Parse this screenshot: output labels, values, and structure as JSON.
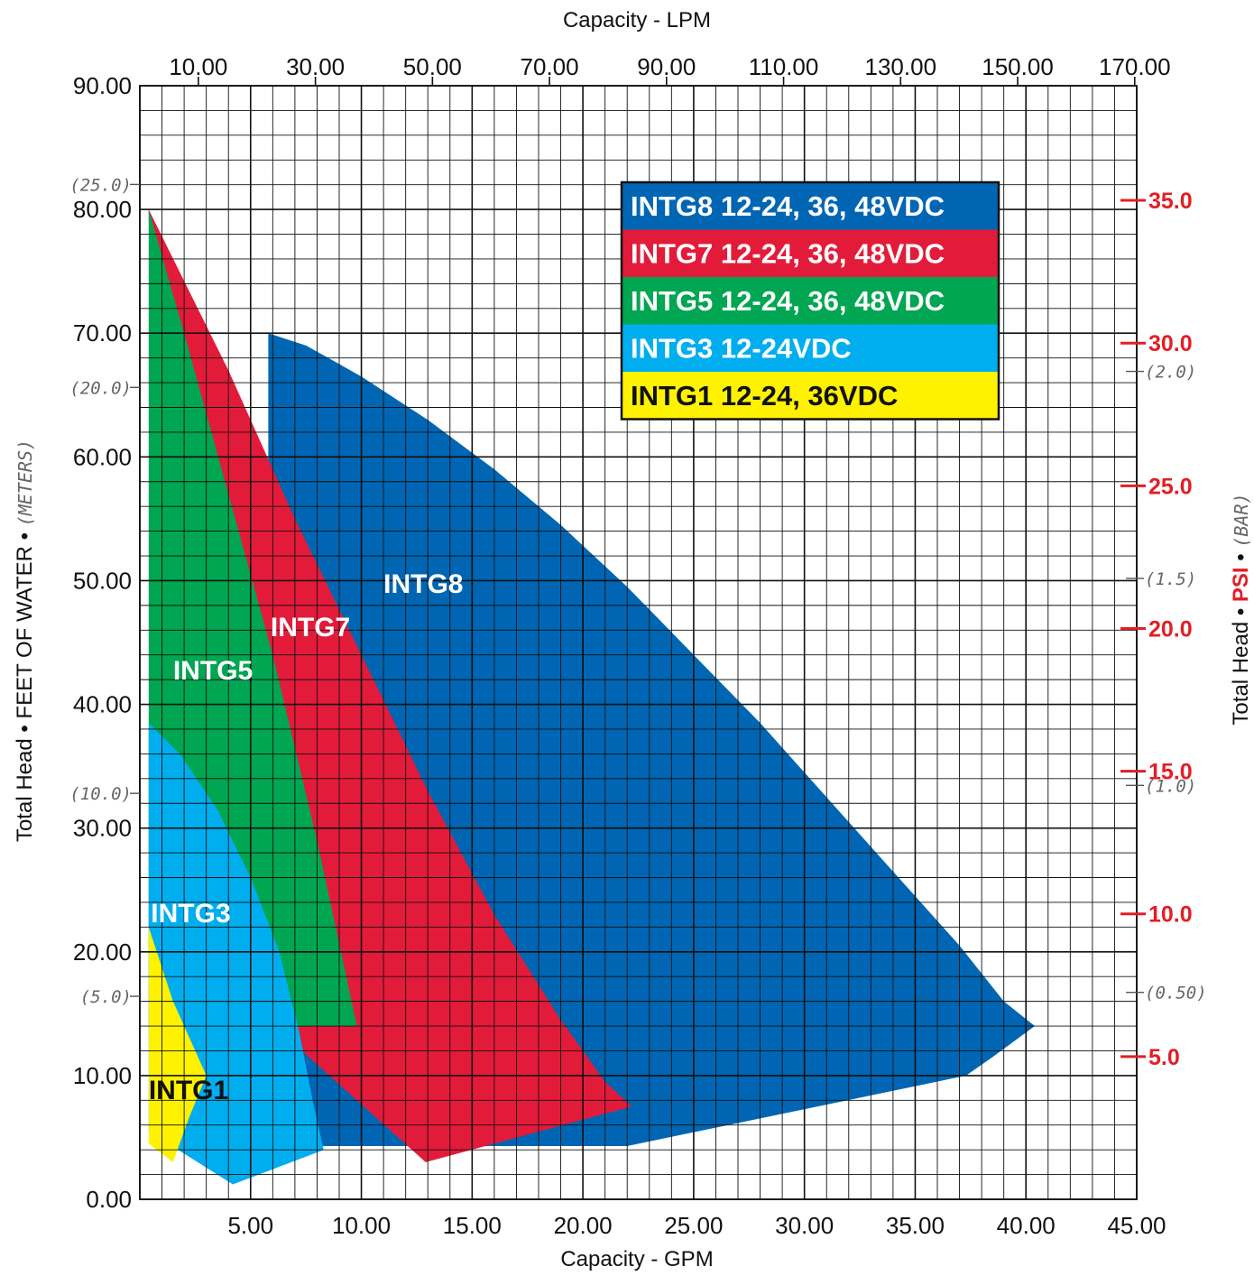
{
  "chart_data": {
    "type": "area",
    "xlabel": "Capacity - GPM",
    "x2label": "Capacity - LPM",
    "ylabel_parts": [
      "Total Head",
      "FEET OF WATER",
      "(METERS)"
    ],
    "y2label_parts": [
      "Total Head",
      "PSI",
      "(BAR)"
    ],
    "xlim": [
      0,
      45
    ],
    "ylim": [
      0,
      90
    ],
    "grid": true,
    "x_ticks": [
      "5.00",
      "10.00",
      "15.00",
      "20.00",
      "25.00",
      "30.00",
      "35.00",
      "40.00",
      "45.00"
    ],
    "lpm_ticks": [
      "10.00",
      "30.00",
      "50.00",
      "70.00",
      "90.00",
      "110.00",
      "130.00",
      "150.00",
      "170.00"
    ],
    "y_ticks": [
      "0.00",
      "10.00",
      "20.00",
      "30.00",
      "40.00",
      "50.00",
      "60.00",
      "70.00",
      "80.00",
      "90.00"
    ],
    "meters_ticks": [
      "(5.0)",
      "(10.0)",
      "(20.0)",
      "(25.0)"
    ],
    "psi_ticks": [
      "5.0",
      "10.0",
      "15.0",
      "20.0",
      "25.0",
      "30.0",
      "35.0"
    ],
    "bar_ticks": [
      "(0.50)",
      "(1.0)",
      "(1.5)",
      "(2.0)"
    ],
    "legend_placement": "top-right",
    "series": [
      {
        "name": "INTG8",
        "legend": "INTG8 12-24, 36, 48VDC",
        "color": "#0066b3",
        "text_color": "#ffffff",
        "boundary": [
          [
            5.8,
            70
          ],
          [
            7.5,
            69
          ],
          [
            10,
            66.5
          ],
          [
            13,
            63
          ],
          [
            16,
            59
          ],
          [
            19,
            54.5
          ],
          [
            22,
            49.5
          ],
          [
            25,
            44
          ],
          [
            28,
            38.5
          ],
          [
            31,
            32.5
          ],
          [
            34,
            26.5
          ],
          [
            37,
            20.5
          ],
          [
            39,
            16
          ],
          [
            40.4,
            14
          ],
          [
            38.5,
            11.5
          ],
          [
            37.3,
            10
          ],
          [
            22,
            4.3
          ],
          [
            7,
            4.3
          ],
          [
            6.1,
            10
          ],
          [
            6,
            14
          ],
          [
            5.8,
            20
          ],
          [
            5.8,
            69
          ]
        ],
        "label_at": [
          12.8,
          49
        ]
      },
      {
        "name": "INTG7",
        "legend": "INTG7 12-24, 36, 48VDC",
        "color": "#e31b3a",
        "text_color": "#ffffff",
        "boundary": [
          [
            0.4,
            80
          ],
          [
            4,
            67
          ],
          [
            7,
            55
          ],
          [
            10,
            44
          ],
          [
            13,
            33
          ],
          [
            16,
            23
          ],
          [
            19,
            14.5
          ],
          [
            21,
            9.5
          ],
          [
            22.2,
            7.5
          ],
          [
            12.9,
            3
          ],
          [
            7,
            12.5
          ],
          [
            6.8,
            14
          ],
          [
            0.4,
            79
          ]
        ],
        "label_at": [
          7.7,
          45.5
        ]
      },
      {
        "name": "INTG5",
        "legend": "INTG5 12-24, 36, 48VDC",
        "color": "#00a651",
        "text_color": "#ffffff",
        "boundary": [
          [
            0.4,
            80
          ],
          [
            2,
            70
          ],
          [
            4,
            57
          ],
          [
            6,
            44
          ],
          [
            8,
            29
          ],
          [
            9.8,
            14
          ],
          [
            1,
            14
          ],
          [
            0.4,
            14
          ],
          [
            0.4,
            80
          ]
        ],
        "label_at": [
          3.3,
          42
        ]
      },
      {
        "name": "INTG3",
        "legend": "INTG3 12-24VDC",
        "color": "#00aeef",
        "text_color": "#ffffff",
        "boundary": [
          [
            0.4,
            38.5
          ],
          [
            1.8,
            36
          ],
          [
            3.5,
            31.5
          ],
          [
            5,
            26
          ],
          [
            6.3,
            20
          ],
          [
            7.2,
            13.5
          ],
          [
            7.8,
            8
          ],
          [
            8.3,
            4
          ],
          [
            4.2,
            1.2
          ],
          [
            0.4,
            5.5
          ],
          [
            0.4,
            38.5
          ]
        ],
        "label_at": [
          2.3,
          22.4
        ]
      },
      {
        "name": "INTG1",
        "legend": "INTG1 12-24, 36VDC",
        "color": "#fff200",
        "text_color": "#111111",
        "boundary": [
          [
            0.4,
            22
          ],
          [
            1.5,
            16
          ],
          [
            3,
            10
          ],
          [
            2.2,
            6.5
          ],
          [
            1.5,
            3
          ],
          [
            0.4,
            4.5
          ],
          [
            0.4,
            22
          ]
        ],
        "label_at": [
          2.2,
          8.1
        ]
      }
    ]
  }
}
